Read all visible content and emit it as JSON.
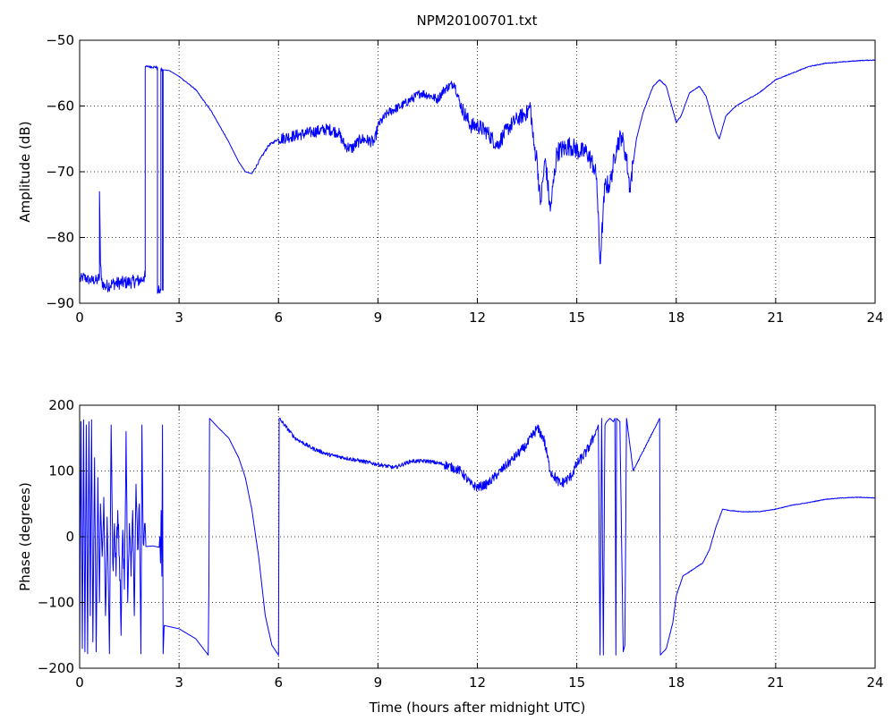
{
  "chart_data": [
    {
      "type": "line",
      "title": "NPM20100701.txt",
      "xlabel": "",
      "ylabel": "Amplitude (dB)",
      "xlim": [
        0,
        24
      ],
      "ylim": [
        -90,
        -50
      ],
      "xticks": [
        0,
        3,
        6,
        9,
        12,
        15,
        18,
        21,
        24
      ],
      "yticks": [
        -90,
        -80,
        -70,
        -60,
        -50
      ],
      "grid": true,
      "color": "#0000ff",
      "series": [
        {
          "noise": [
            [
              0,
              0.52,
              0.8
            ],
            [
              0.52,
              0.74,
              1.0
            ],
            [
              0.74,
              1.98,
              1.0
            ],
            [
              1.98,
              2.03,
              0.3
            ],
            [
              2.03,
              2.32,
              0.2
            ],
            [
              2.32,
              2.38,
              0.5
            ],
            [
              2.38,
              2.46,
              0.8
            ],
            [
              2.46,
              2.5,
              0.3
            ],
            [
              3.0,
              4.5,
              0.08
            ],
            [
              5.2,
              6.0,
              0.2
            ],
            [
              6.0,
              9.0,
              0.9
            ],
            [
              9.0,
              11.5,
              0.7
            ],
            [
              11.5,
              13.5,
              1.2
            ],
            [
              13.5,
              16.7,
              1.5
            ],
            [
              16.7,
              24,
              0.06
            ]
          ],
          "points": [
            [
              0.0,
              -86.5
            ],
            [
              0.1,
              -86.0
            ],
            [
              0.3,
              -86.5
            ],
            [
              0.55,
              -86.5
            ],
            [
              0.6,
              -86.0
            ],
            [
              0.6,
              -73.0
            ],
            [
              0.63,
              -84.0
            ],
            [
              0.66,
              -86.5
            ],
            [
              0.75,
              -87.5
            ],
            [
              1.0,
              -87.0
            ],
            [
              1.5,
              -86.8
            ],
            [
              1.85,
              -86.5
            ],
            [
              1.93,
              -86.0
            ],
            [
              1.98,
              -86.0
            ],
            [
              1.98,
              -54.0
            ],
            [
              2.0,
              -54.0
            ],
            [
              2.03,
              -54.0
            ],
            [
              2.35,
              -54.1
            ],
            [
              2.35,
              -88.5
            ],
            [
              2.4,
              -88.0
            ],
            [
              2.45,
              -88.0
            ],
            [
              2.45,
              -54.5
            ],
            [
              2.5,
              -54.5
            ],
            [
              2.5,
              -88.0
            ],
            [
              2.52,
              -88.0
            ],
            [
              2.52,
              -54.5
            ],
            [
              2.7,
              -54.6
            ],
            [
              3.0,
              -55.5
            ],
            [
              3.5,
              -57.5
            ],
            [
              4.0,
              -61.0
            ],
            [
              4.5,
              -65.5
            ],
            [
              4.8,
              -68.5
            ],
            [
              5.0,
              -70.0
            ],
            [
              5.2,
              -70.3
            ],
            [
              5.4,
              -68.5
            ],
            [
              5.7,
              -66.0
            ],
            [
              6.0,
              -65.0
            ],
            [
              6.5,
              -64.5
            ],
            [
              7.0,
              -64.0
            ],
            [
              7.5,
              -63.5
            ],
            [
              7.8,
              -64.0
            ],
            [
              8.0,
              -66.0
            ],
            [
              8.2,
              -66.5
            ],
            [
              8.5,
              -65.0
            ],
            [
              8.9,
              -65.5
            ],
            [
              9.0,
              -63.0
            ],
            [
              9.3,
              -61.0
            ],
            [
              9.7,
              -60.0
            ],
            [
              10.0,
              -59.0
            ],
            [
              10.3,
              -58.0
            ],
            [
              10.6,
              -58.5
            ],
            [
              10.8,
              -59.0
            ],
            [
              11.0,
              -57.5
            ],
            [
              11.3,
              -56.5
            ],
            [
              11.5,
              -60.0
            ],
            [
              11.8,
              -63.0
            ],
            [
              12.0,
              -63.0
            ],
            [
              12.3,
              -64.0
            ],
            [
              12.6,
              -66.0
            ],
            [
              12.9,
              -63.5
            ],
            [
              13.2,
              -62.0
            ],
            [
              13.5,
              -61.0
            ],
            [
              13.6,
              -60.0
            ],
            [
              13.7,
              -66.0
            ],
            [
              13.8,
              -68.0
            ],
            [
              13.9,
              -75.0
            ],
            [
              14.05,
              -68.0
            ],
            [
              14.2,
              -76.0
            ],
            [
              14.4,
              -67.0
            ],
            [
              14.8,
              -66.0
            ],
            [
              15.1,
              -67.0
            ],
            [
              15.3,
              -67.0
            ],
            [
              15.5,
              -69.0
            ],
            [
              15.6,
              -71.0
            ],
            [
              15.7,
              -84.0
            ],
            [
              15.85,
              -72.0
            ],
            [
              16.0,
              -72.0
            ],
            [
              16.2,
              -66.0
            ],
            [
              16.35,
              -64.5
            ],
            [
              16.5,
              -68.0
            ],
            [
              16.6,
              -72.5
            ],
            [
              16.8,
              -65.0
            ],
            [
              17.0,
              -61.0
            ],
            [
              17.3,
              -57.0
            ],
            [
              17.5,
              -56.0
            ],
            [
              17.7,
              -57.0
            ],
            [
              18.0,
              -62.5
            ],
            [
              18.15,
              -61.5
            ],
            [
              18.4,
              -58.0
            ],
            [
              18.7,
              -57.0
            ],
            [
              18.9,
              -58.5
            ],
            [
              19.2,
              -64.0
            ],
            [
              19.3,
              -65.0
            ],
            [
              19.5,
              -61.5
            ],
            [
              19.8,
              -60.0
            ],
            [
              20.5,
              -58.0
            ],
            [
              21.0,
              -56.0
            ],
            [
              21.5,
              -55.0
            ],
            [
              22.0,
              -54.0
            ],
            [
              22.5,
              -53.5
            ],
            [
              23.0,
              -53.3
            ],
            [
              23.5,
              -53.1
            ],
            [
              24.0,
              -53.0
            ]
          ]
        }
      ]
    },
    {
      "type": "line",
      "title": "",
      "xlabel": "Time (hours after midnight UTC)",
      "ylabel": "Phase (degrees)",
      "xlim": [
        0,
        24
      ],
      "ylim": [
        -200,
        200
      ],
      "xticks": [
        0,
        3,
        6,
        9,
        12,
        15,
        18,
        21,
        24
      ],
      "yticks": [
        -200,
        -100,
        0,
        100,
        200
      ],
      "grid": true,
      "color": "#0000ff",
      "series": [
        {
          "noise": [
            [
              0.6,
              0.9,
              12
            ],
            [
              1.0,
              1.5,
              28
            ],
            [
              1.5,
              2.0,
              18
            ],
            [
              6.0,
              8.0,
              3
            ],
            [
              8.0,
              11.0,
              3
            ],
            [
              11.0,
              13.5,
              7
            ],
            [
              13.5,
              15.5,
              8
            ],
            [
              15.5,
              15.7,
              3
            ],
            [
              16.6,
              17.5,
              1
            ],
            [
              17.6,
              24,
              0.5
            ]
          ],
          "points": [
            [
              0.0,
              -180
            ],
            [
              0.04,
              175
            ],
            [
              0.08,
              -170
            ],
            [
              0.12,
              178
            ],
            [
              0.16,
              -175
            ],
            [
              0.2,
              170
            ],
            [
              0.24,
              -178
            ],
            [
              0.28,
              175
            ],
            [
              0.32,
              -120
            ],
            [
              0.36,
              178
            ],
            [
              0.4,
              -160
            ],
            [
              0.45,
              120
            ],
            [
              0.5,
              -175
            ],
            [
              0.55,
              90
            ],
            [
              0.6,
              -100
            ],
            [
              0.63,
              50
            ],
            [
              0.68,
              -30
            ],
            [
              0.73,
              60
            ],
            [
              0.78,
              -120
            ],
            [
              0.83,
              30
            ],
            [
              0.87,
              -80
            ],
            [
              0.9,
              -178
            ],
            [
              0.95,
              170
            ],
            [
              1.0,
              -40
            ],
            [
              1.05,
              20
            ],
            [
              1.1,
              -60
            ],
            [
              1.15,
              40
            ],
            [
              1.2,
              -30
            ],
            [
              1.25,
              -150
            ],
            [
              1.3,
              10
            ],
            [
              1.35,
              -80
            ],
            [
              1.4,
              160
            ],
            [
              1.45,
              -100
            ],
            [
              1.5,
              20
            ],
            [
              1.55,
              -60
            ],
            [
              1.6,
              40
            ],
            [
              1.65,
              -120
            ],
            [
              1.7,
              80
            ],
            [
              1.75,
              -20
            ],
            [
              1.8,
              50
            ],
            [
              1.85,
              -178
            ],
            [
              1.88,
              170
            ],
            [
              1.92,
              -10
            ],
            [
              1.96,
              20
            ],
            [
              2.0,
              -15
            ],
            [
              2.2,
              -14
            ],
            [
              2.4,
              -16
            ],
            [
              2.42,
              0
            ],
            [
              2.44,
              -40
            ],
            [
              2.46,
              40
            ],
            [
              2.48,
              -60
            ],
            [
              2.5,
              170
            ],
            [
              2.52,
              -178
            ],
            [
              2.55,
              -135
            ],
            [
              3.0,
              -140
            ],
            [
              3.5,
              -155
            ],
            [
              3.88,
              -180
            ],
            [
              3.9,
              -70
            ],
            [
              3.92,
              180
            ],
            [
              4.2,
              165
            ],
            [
              4.5,
              150
            ],
            [
              4.8,
              120
            ],
            [
              5.0,
              90
            ],
            [
              5.2,
              40
            ],
            [
              5.4,
              -30
            ],
            [
              5.6,
              -120
            ],
            [
              5.8,
              -165
            ],
            [
              6.0,
              -180
            ],
            [
              6.02,
              180
            ],
            [
              6.5,
              150
            ],
            [
              7.0,
              135
            ],
            [
              7.5,
              125
            ],
            [
              8.0,
              120
            ],
            [
              8.5,
              115
            ],
            [
              9.0,
              110
            ],
            [
              9.5,
              105
            ],
            [
              10.0,
              115
            ],
            [
              10.5,
              115
            ],
            [
              11.0,
              110
            ],
            [
              11.5,
              100
            ],
            [
              11.8,
              80
            ],
            [
              12.0,
              75
            ],
            [
              12.3,
              80
            ],
            [
              12.6,
              95
            ],
            [
              13.0,
              115
            ],
            [
              13.5,
              140
            ],
            [
              13.8,
              165
            ],
            [
              14.0,
              150
            ],
            [
              14.2,
              100
            ],
            [
              14.5,
              80
            ],
            [
              14.8,
              90
            ],
            [
              15.0,
              110
            ],
            [
              15.3,
              130
            ],
            [
              15.5,
              150
            ],
            [
              15.65,
              170
            ],
            [
              15.7,
              -180
            ],
            [
              15.75,
              180
            ],
            [
              15.8,
              -180
            ],
            [
              15.85,
              170
            ],
            [
              15.9,
              175
            ],
            [
              16.0,
              180
            ],
            [
              16.1,
              175
            ],
            [
              16.15,
              180
            ],
            [
              16.18,
              -180
            ],
            [
              16.2,
              180
            ],
            [
              16.3,
              175
            ],
            [
              16.4,
              -175
            ],
            [
              16.45,
              -165
            ],
            [
              16.5,
              180
            ],
            [
              16.6,
              140
            ],
            [
              16.7,
              100
            ],
            [
              17.0,
              130
            ],
            [
              17.3,
              160
            ],
            [
              17.5,
              180
            ],
            [
              17.52,
              -180
            ],
            [
              17.7,
              -170
            ],
            [
              17.9,
              -130
            ],
            [
              18.0,
              -90
            ],
            [
              18.2,
              -60
            ],
            [
              18.5,
              -50
            ],
            [
              18.8,
              -40
            ],
            [
              19.0,
              -20
            ],
            [
              19.2,
              15
            ],
            [
              19.4,
              42
            ],
            [
              19.6,
              40
            ],
            [
              20.0,
              38
            ],
            [
              20.5,
              38
            ],
            [
              21.0,
              42
            ],
            [
              21.5,
              48
            ],
            [
              22.0,
              52
            ],
            [
              22.5,
              57
            ],
            [
              23.0,
              59
            ],
            [
              23.5,
              60
            ],
            [
              24.0,
              59
            ]
          ]
        }
      ]
    }
  ]
}
